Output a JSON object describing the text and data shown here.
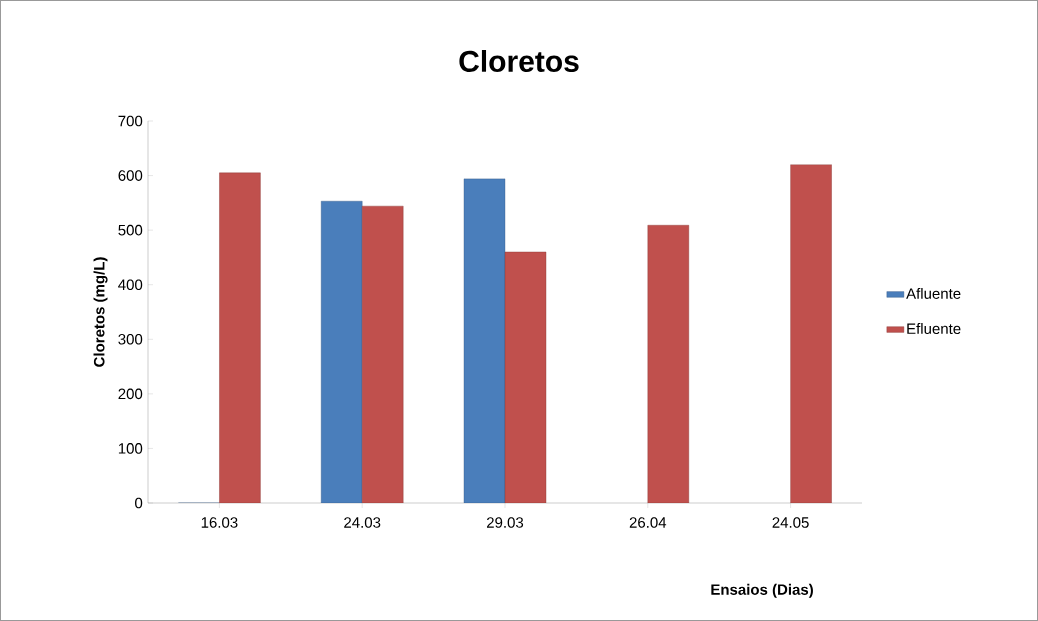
{
  "chart_data": {
    "type": "bar",
    "title": "Cloretos",
    "xlabel": "Ensaios (Dias)",
    "ylabel": "Cloretos (mg/L)",
    "categories": [
      "16.03",
      "24.03",
      "29.03",
      "26.04",
      "24.05"
    ],
    "series": [
      {
        "name": "Afluente",
        "color": "#4a7ebb",
        "values": [
          0,
          553,
          594,
          null,
          null
        ]
      },
      {
        "name": "Efluente",
        "color": "#c0504d",
        "values": [
          605,
          544,
          460,
          509,
          620
        ]
      }
    ],
    "ylim": [
      0,
      700
    ],
    "yticks": [
      0,
      100,
      200,
      300,
      400,
      500,
      600,
      700
    ],
    "grid": false,
    "legend": "right"
  }
}
